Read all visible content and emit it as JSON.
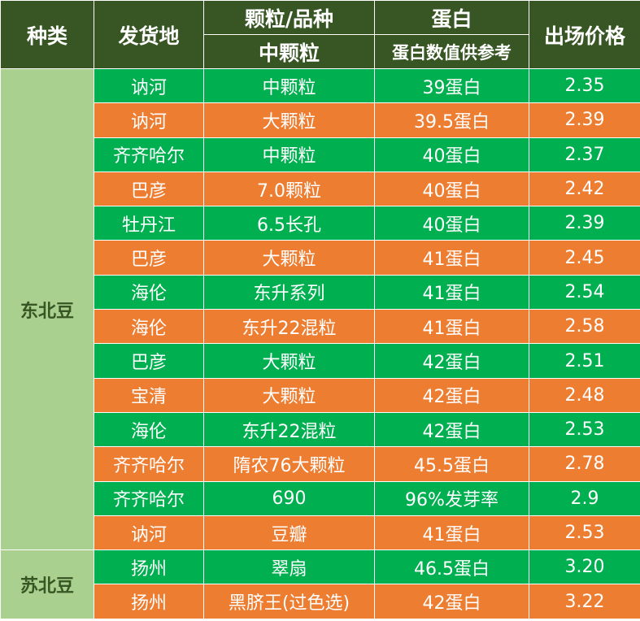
{
  "header": {
    "category": "种类",
    "origin": "发货地",
    "grain": "颗粒/品种",
    "grain_sub": "中颗粒",
    "protein": "蛋白",
    "protein_sub": "蛋白数值供参考",
    "price": "出场价格"
  },
  "colors": {
    "header": "#375623",
    "green_row": "#00b050",
    "orange_row": "#ed7d31",
    "category": "#a9d08e"
  },
  "groups": [
    {
      "category": "东北豆",
      "rows": [
        {
          "origin": "讷河",
          "grain": "中颗粒",
          "protein": "39蛋白",
          "price": "2.35",
          "color": "green"
        },
        {
          "origin": "讷河",
          "grain": "大颗粒",
          "protein": "39.5蛋白",
          "price": "2.39",
          "color": "orange"
        },
        {
          "origin": "齐齐哈尔",
          "grain": "中颗粒",
          "protein": "40蛋白",
          "price": "2.37",
          "color": "green"
        },
        {
          "origin": "巴彦",
          "grain": "7.0颗粒",
          "protein": "40蛋白",
          "price": "2.42",
          "color": "orange"
        },
        {
          "origin": "牡丹江",
          "grain": "6.5长孔",
          "protein": "40蛋白",
          "price": "2.39",
          "color": "green"
        },
        {
          "origin": "巴彦",
          "grain": "大颗粒",
          "protein": "41蛋白",
          "price": "2.45",
          "color": "orange"
        },
        {
          "origin": "海伦",
          "grain": "东升系列",
          "protein": "41蛋白",
          "price": "2.54",
          "color": "green"
        },
        {
          "origin": "海伦",
          "grain": "东升22混粒",
          "protein": "41蛋白",
          "price": "2.58",
          "color": "orange"
        },
        {
          "origin": "巴彦",
          "grain": "大颗粒",
          "protein": "42蛋白",
          "price": "2.51",
          "color": "green"
        },
        {
          "origin": "宝清",
          "grain": "大颗粒",
          "protein": "42蛋白",
          "price": "2.48",
          "color": "orange"
        },
        {
          "origin": "海伦",
          "grain": "东升22混粒",
          "protein": "42蛋白",
          "price": "2.53",
          "color": "green"
        },
        {
          "origin": "齐齐哈尔",
          "grain": "隋农76大颗粒",
          "protein": "45.5蛋白",
          "price": "2.78",
          "color": "orange"
        },
        {
          "origin": "齐齐哈尔",
          "grain": "690",
          "protein": "96%发芽率",
          "price": "2.9",
          "color": "green"
        },
        {
          "origin": "讷河",
          "grain": "豆瓣",
          "protein": "41蛋白",
          "price": "2.53",
          "color": "orange"
        }
      ]
    },
    {
      "category": "苏北豆",
      "rows": [
        {
          "origin": "扬州",
          "grain": "翠扇",
          "protein": "46.5蛋白",
          "price": "3.20",
          "color": "green"
        },
        {
          "origin": "扬州",
          "grain": "黑脐王(过色选)",
          "protein": "42蛋白",
          "price": "3.22",
          "color": "orange"
        }
      ]
    }
  ]
}
